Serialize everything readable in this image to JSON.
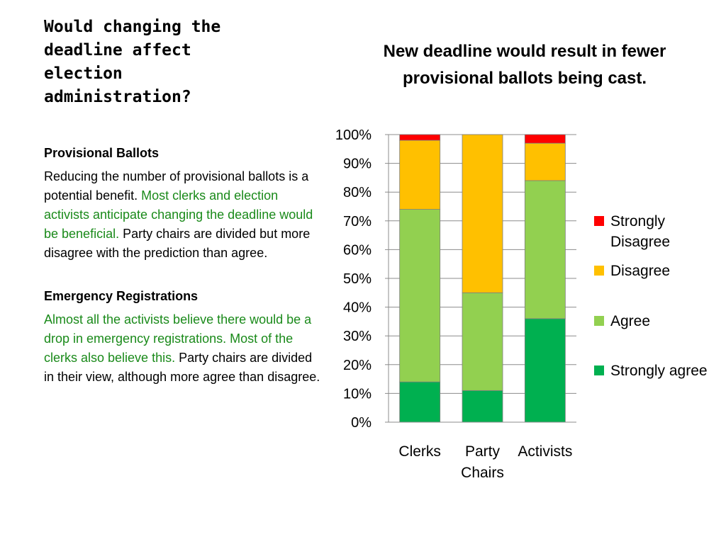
{
  "slide": {
    "title": "Would changing the deadline affect election administration?"
  },
  "left": {
    "provisional": {
      "heading": "Provisional Ballots",
      "part1": "Reducing the number of provisional ballots is a potential benefit.  ",
      "part2_green": "Most clerks and election activists anticipate changing the deadline would be beneficial.",
      "part3": "  Party chairs are divided but more disagree with the prediction than agree."
    },
    "emergency": {
      "heading": "Emergency Registrations",
      "part1_green": "Almost all the activists believe there would be a drop in emergency registrations.  Most of the clerks also believe this.",
      "part2": "  Party chairs are divided in their view, although more agree than disagree."
    }
  },
  "colors": {
    "strongly_agree": "#00b050",
    "agree": "#92d050",
    "disagree": "#ffc000",
    "strongly_disagree": "#ff0000"
  },
  "chart_data": {
    "type": "bar",
    "stacked": true,
    "title": "New deadline would  result in fewer provisional ballots being cast.",
    "categories": [
      "Clerks",
      "Party\nChairs",
      "Activists"
    ],
    "ylim": [
      0,
      100
    ],
    "yticks": [
      "0%",
      "10%",
      "20%",
      "30%",
      "40%",
      "50%",
      "60%",
      "70%",
      "80%",
      "90%",
      "100%"
    ],
    "grid": true,
    "legend_position": "right",
    "series": [
      {
        "name": "Strongly agree",
        "color": "#00b050",
        "values": [
          14,
          11,
          36
        ]
      },
      {
        "name": "Agree",
        "color": "#92d050",
        "values": [
          60,
          34,
          48
        ]
      },
      {
        "name": "Disagree",
        "color": "#ffc000",
        "values": [
          24,
          55,
          13
        ]
      },
      {
        "name": "Strongly\nDisagree",
        "color": "#ff0000",
        "values": [
          2,
          0,
          3
        ]
      }
    ]
  }
}
